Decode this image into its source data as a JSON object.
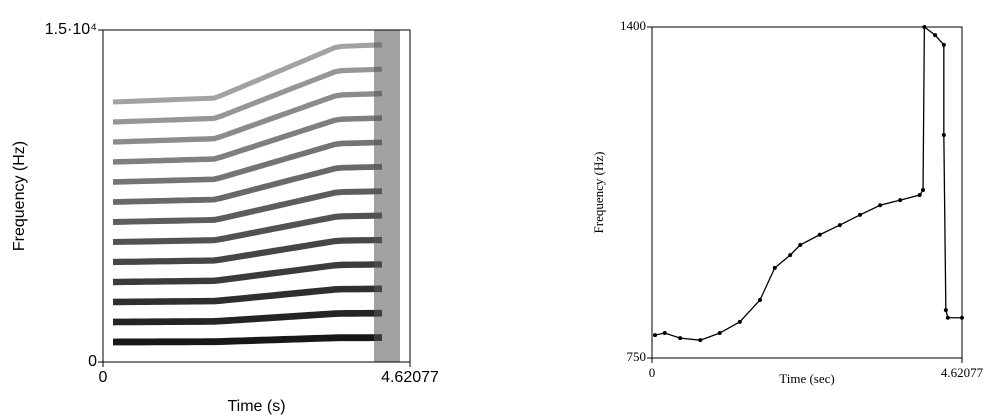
{
  "chart_data": [
    {
      "type": "spectrogram",
      "xlabel": "Time (s)",
      "ylabel": "Frequency (Hz)",
      "xlim": [
        0,
        4.62077
      ],
      "xticks": [
        0,
        4.62077
      ],
      "ylim": [
        0,
        15000
      ],
      "yticks": [
        0,
        {
          "value": 15000,
          "label": "1.5·10⁴"
        }
      ]
    },
    {
      "type": "line",
      "xlabel": "Time (sec)",
      "ylabel": "Frequency (Hz)",
      "xlim": [
        0,
        4.62077
      ],
      "xticks": [
        0,
        4.62077
      ],
      "ylim": [
        750,
        1400
      ],
      "yticks": [
        750,
        1400
      ],
      "series": [
        {
          "color": "#000000",
          "x": [
            0.045,
            0.19,
            0.42,
            0.72,
            1.01,
            1.31,
            1.61,
            1.83,
            2.06,
            2.21,
            2.5,
            2.8,
            3.1,
            3.4,
            3.7,
            3.99,
            4.04,
            4.06,
            4.22,
            4.35,
            4.35,
            4.38,
            4.41,
            4.62
          ],
          "values": [
            795,
            799,
            789,
            785,
            799,
            821,
            864,
            927,
            952,
            972,
            992,
            1011,
            1031,
            1050,
            1060,
            1070,
            1080,
            1400,
            1384,
            1365,
            1188,
            844,
            829,
            829
          ]
        }
      ]
    }
  ]
}
